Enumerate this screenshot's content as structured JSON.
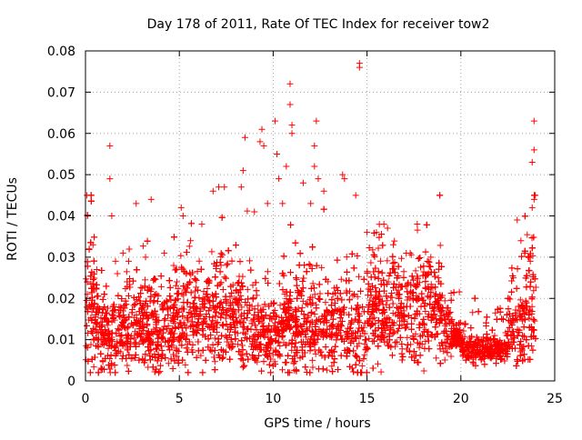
{
  "chart_data": {
    "type": "scatter",
    "title": "Day 178 of 2011, Rate Of TEC Index for receiver tow2",
    "xlabel": "GPS time / hours",
    "ylabel": "ROTI / TECUs",
    "xlim": [
      0,
      25
    ],
    "ylim": [
      0,
      0.08
    ],
    "xticks": [
      0,
      5,
      10,
      15,
      20,
      25
    ],
    "xtick_labels": [
      "0",
      "5",
      "10",
      "15",
      "20",
      "25"
    ],
    "yticks": [
      0,
      0.01,
      0.02,
      0.03,
      0.04,
      0.05,
      0.06,
      0.07,
      0.08
    ],
    "ytick_labels": [
      "0",
      "0.01",
      "0.02",
      "0.03",
      "0.04",
      "0.05",
      "0.06",
      "0.07",
      "0.08"
    ],
    "grid": true,
    "marker": "+",
    "series": [
      {
        "name": "ROTI",
        "color": "#ff0000",
        "points": [
          [
            0.1,
            0.04
          ],
          [
            0.3,
            0.045
          ],
          [
            0.2,
            0.032
          ],
          [
            0.1,
            0.021
          ],
          [
            0.4,
            0.033
          ],
          [
            0.6,
            0.027
          ],
          [
            1.3,
            0.057
          ],
          [
            1.3,
            0.049
          ],
          [
            1.4,
            0.04
          ],
          [
            1.6,
            0.029
          ],
          [
            1.7,
            0.026
          ],
          [
            2.0,
            0.031
          ],
          [
            2.3,
            0.029
          ],
          [
            2.7,
            0.043
          ],
          [
            3.2,
            0.03
          ],
          [
            3.5,
            0.044
          ],
          [
            4.2,
            0.031
          ],
          [
            4.7,
            0.028
          ],
          [
            5.1,
            0.042
          ],
          [
            5.2,
            0.04
          ],
          [
            5.6,
            0.034
          ],
          [
            6.2,
            0.038
          ],
          [
            6.8,
            0.046
          ],
          [
            7.1,
            0.047
          ],
          [
            7.4,
            0.047
          ],
          [
            8.3,
            0.047
          ],
          [
            8.4,
            0.051
          ],
          [
            8.5,
            0.059
          ],
          [
            9.0,
            0.041
          ],
          [
            9.4,
            0.061
          ],
          [
            9.3,
            0.058
          ],
          [
            9.5,
            0.057
          ],
          [
            9.7,
            0.043
          ],
          [
            10.1,
            0.063
          ],
          [
            10.2,
            0.055
          ],
          [
            10.3,
            0.049
          ],
          [
            10.5,
            0.043
          ],
          [
            10.9,
            0.072
          ],
          [
            10.9,
            0.067
          ],
          [
            11.0,
            0.062
          ],
          [
            11.0,
            0.06
          ],
          [
            10.7,
            0.052
          ],
          [
            11.6,
            0.048
          ],
          [
            12.0,
            0.043
          ],
          [
            12.2,
            0.057
          ],
          [
            12.3,
            0.063
          ],
          [
            12.2,
            0.052
          ],
          [
            12.4,
            0.049
          ],
          [
            12.7,
            0.046
          ],
          [
            13.7,
            0.05
          ],
          [
            13.8,
            0.049
          ],
          [
            14.4,
            0.045
          ],
          [
            14.6,
            0.077
          ],
          [
            14.6,
            0.076
          ],
          [
            15.0,
            0.036
          ],
          [
            15.5,
            0.036
          ],
          [
            15.9,
            0.038
          ],
          [
            16.4,
            0.033
          ],
          [
            17.3,
            0.031
          ],
          [
            18.4,
            0.03
          ],
          [
            18.8,
            0.025
          ],
          [
            19.1,
            0.016
          ],
          [
            20.1,
            0.006
          ],
          [
            21.0,
            0.007
          ],
          [
            21.8,
            0.011
          ],
          [
            22.5,
            0.012
          ],
          [
            22.8,
            0.025
          ],
          [
            23.0,
            0.039
          ],
          [
            23.2,
            0.034
          ],
          [
            23.4,
            0.031
          ],
          [
            23.7,
            0.029
          ],
          [
            23.9,
            0.063
          ],
          [
            23.9,
            0.056
          ],
          [
            23.8,
            0.053
          ],
          [
            23.9,
            0.044
          ],
          [
            23.8,
            0.042
          ]
        ]
      }
    ]
  }
}
